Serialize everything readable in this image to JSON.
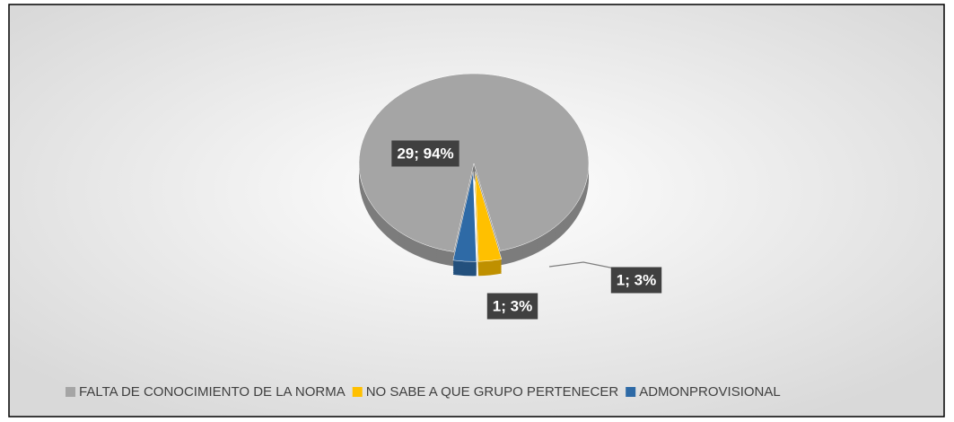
{
  "chart_data": {
    "type": "pie",
    "categories": [
      "FALTA DE CONOCIMIENTO DE LA NORMA",
      "NO SABE A QUE GRUPO PERTENECER",
      "ADMONPROVISIONAL"
    ],
    "values": [
      29,
      1,
      1
    ],
    "value_labels": [
      "29; 94%",
      "1; 3%",
      "1; 3%"
    ],
    "colors": [
      "#a5a5a5",
      "#ffc000",
      "#2e6aa6"
    ],
    "legend": "bottom"
  }
}
